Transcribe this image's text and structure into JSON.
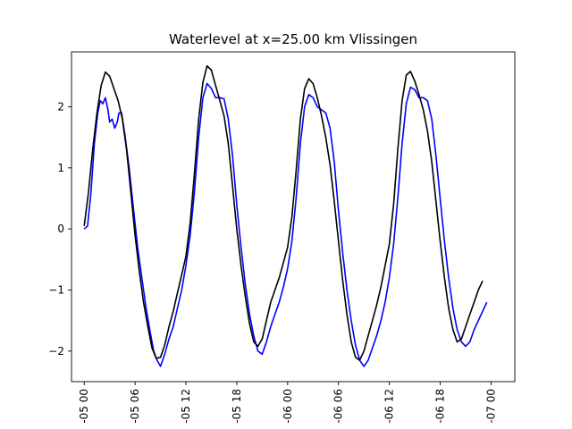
{
  "chart_data": {
    "type": "line",
    "title": "Waterlevel at x=25.00 km Vlissingen",
    "xlabel": "",
    "ylabel": "",
    "xlim": [
      -1.5,
      50.8
    ],
    "ylim": [
      -2.5,
      2.9
    ],
    "grid": false,
    "legend": "none",
    "x_tick_hours": [
      0,
      6,
      12,
      18,
      24,
      30,
      36,
      42,
      48
    ],
    "x_tick_labels": [
      "-05 00",
      "-05 06",
      "-05 12",
      "-05 18",
      "-06 00",
      "-06 06",
      "-06 12",
      "-06 18",
      "-07 00"
    ],
    "y_ticks": [
      -2,
      -1,
      0,
      1,
      2
    ],
    "y_tick_labels": [
      "−2",
      "−1",
      "0",
      "1",
      "2"
    ],
    "series": [
      {
        "color": "#0000ff",
        "points": [
          [
            0.0,
            0.0
          ],
          [
            0.4,
            0.05
          ],
          [
            0.8,
            0.6
          ],
          [
            1.2,
            1.4
          ],
          [
            1.6,
            1.9
          ],
          [
            1.9,
            2.1
          ],
          [
            2.2,
            2.05
          ],
          [
            2.5,
            2.15
          ],
          [
            2.8,
            1.95
          ],
          [
            3.0,
            1.75
          ],
          [
            3.3,
            1.8
          ],
          [
            3.6,
            1.65
          ],
          [
            3.9,
            1.75
          ],
          [
            4.1,
            1.9
          ],
          [
            4.4,
            1.9
          ],
          [
            4.8,
            1.55
          ],
          [
            5.3,
            1.0
          ],
          [
            5.8,
            0.35
          ],
          [
            6.3,
            -0.3
          ],
          [
            6.8,
            -0.8
          ],
          [
            7.3,
            -1.3
          ],
          [
            7.8,
            -1.7
          ],
          [
            8.2,
            -2.0
          ],
          [
            8.6,
            -2.15
          ],
          [
            9.0,
            -2.25
          ],
          [
            9.5,
            -2.05
          ],
          [
            10.0,
            -1.8
          ],
          [
            10.5,
            -1.6
          ],
          [
            11.0,
            -1.3
          ],
          [
            11.5,
            -1.0
          ],
          [
            12.0,
            -0.6
          ],
          [
            12.5,
            -0.1
          ],
          [
            13.0,
            0.6
          ],
          [
            13.5,
            1.5
          ],
          [
            14.0,
            2.15
          ],
          [
            14.5,
            2.38
          ],
          [
            15.0,
            2.3
          ],
          [
            15.5,
            2.15
          ],
          [
            16.0,
            2.15
          ],
          [
            16.5,
            2.13
          ],
          [
            17.0,
            1.8
          ],
          [
            17.5,
            1.2
          ],
          [
            18.0,
            0.4
          ],
          [
            18.5,
            -0.3
          ],
          [
            19.0,
            -0.9
          ],
          [
            19.5,
            -1.4
          ],
          [
            20.0,
            -1.75
          ],
          [
            20.5,
            -2.0
          ],
          [
            21.0,
            -2.05
          ],
          [
            21.5,
            -1.85
          ],
          [
            22.0,
            -1.6
          ],
          [
            22.5,
            -1.4
          ],
          [
            23.0,
            -1.2
          ],
          [
            23.5,
            -0.95
          ],
          [
            24.0,
            -0.65
          ],
          [
            24.5,
            -0.2
          ],
          [
            25.0,
            0.5
          ],
          [
            25.5,
            1.4
          ],
          [
            26.0,
            2.0
          ],
          [
            26.5,
            2.2
          ],
          [
            27.0,
            2.15
          ],
          [
            27.5,
            2.0
          ],
          [
            28.0,
            1.95
          ],
          [
            28.5,
            1.9
          ],
          [
            29.0,
            1.65
          ],
          [
            29.5,
            1.1
          ],
          [
            30.0,
            0.3
          ],
          [
            30.5,
            -0.4
          ],
          [
            31.0,
            -1.0
          ],
          [
            31.5,
            -1.5
          ],
          [
            32.0,
            -1.9
          ],
          [
            32.5,
            -2.15
          ],
          [
            33.0,
            -2.25
          ],
          [
            33.5,
            -2.15
          ],
          [
            34.0,
            -1.95
          ],
          [
            34.5,
            -1.75
          ],
          [
            35.0,
            -1.5
          ],
          [
            35.5,
            -1.2
          ],
          [
            36.0,
            -0.8
          ],
          [
            36.5,
            -0.25
          ],
          [
            37.0,
            0.5
          ],
          [
            37.5,
            1.4
          ],
          [
            38.0,
            2.05
          ],
          [
            38.5,
            2.32
          ],
          [
            39.0,
            2.28
          ],
          [
            39.5,
            2.15
          ],
          [
            40.0,
            2.15
          ],
          [
            40.5,
            2.1
          ],
          [
            41.0,
            1.8
          ],
          [
            41.5,
            1.2
          ],
          [
            42.0,
            0.5
          ],
          [
            42.5,
            -0.2
          ],
          [
            43.0,
            -0.8
          ],
          [
            43.5,
            -1.3
          ],
          [
            44.0,
            -1.65
          ],
          [
            44.5,
            -1.85
          ],
          [
            45.0,
            -1.92
          ],
          [
            45.5,
            -1.85
          ],
          [
            46.0,
            -1.65
          ],
          [
            46.5,
            -1.5
          ],
          [
            47.0,
            -1.35
          ],
          [
            47.5,
            -1.2
          ]
        ]
      },
      {
        "color": "#000000",
        "points": [
          [
            0.0,
            0.05
          ],
          [
            0.5,
            0.6
          ],
          [
            1.0,
            1.3
          ],
          [
            1.5,
            1.9
          ],
          [
            2.0,
            2.35
          ],
          [
            2.5,
            2.57
          ],
          [
            3.0,
            2.5
          ],
          [
            3.5,
            2.3
          ],
          [
            4.0,
            2.1
          ],
          [
            4.5,
            1.8
          ],
          [
            5.0,
            1.3
          ],
          [
            5.5,
            0.6
          ],
          [
            6.0,
            -0.1
          ],
          [
            6.5,
            -0.7
          ],
          [
            7.0,
            -1.2
          ],
          [
            7.5,
            -1.6
          ],
          [
            8.0,
            -1.95
          ],
          [
            8.5,
            -2.12
          ],
          [
            9.0,
            -2.1
          ],
          [
            9.5,
            -1.9
          ],
          [
            10.0,
            -1.6
          ],
          [
            10.5,
            -1.35
          ],
          [
            11.0,
            -1.05
          ],
          [
            11.5,
            -0.75
          ],
          [
            12.0,
            -0.45
          ],
          [
            12.5,
            0.1
          ],
          [
            13.0,
            0.9
          ],
          [
            13.5,
            1.8
          ],
          [
            14.0,
            2.4
          ],
          [
            14.5,
            2.67
          ],
          [
            15.0,
            2.6
          ],
          [
            15.5,
            2.35
          ],
          [
            16.0,
            2.1
          ],
          [
            16.5,
            1.85
          ],
          [
            17.0,
            1.4
          ],
          [
            17.5,
            0.7
          ],
          [
            18.0,
            0.0
          ],
          [
            18.5,
            -0.6
          ],
          [
            19.0,
            -1.1
          ],
          [
            19.5,
            -1.55
          ],
          [
            20.0,
            -1.85
          ],
          [
            20.5,
            -1.92
          ],
          [
            21.0,
            -1.8
          ],
          [
            21.5,
            -1.5
          ],
          [
            22.0,
            -1.2
          ],
          [
            22.5,
            -1.0
          ],
          [
            23.0,
            -0.8
          ],
          [
            23.5,
            -0.55
          ],
          [
            24.0,
            -0.3
          ],
          [
            24.5,
            0.2
          ],
          [
            25.0,
            0.95
          ],
          [
            25.5,
            1.8
          ],
          [
            26.0,
            2.3
          ],
          [
            26.5,
            2.46
          ],
          [
            27.0,
            2.38
          ],
          [
            27.5,
            2.15
          ],
          [
            28.0,
            1.85
          ],
          [
            28.5,
            1.5
          ],
          [
            29.0,
            1.05
          ],
          [
            29.5,
            0.45
          ],
          [
            30.0,
            -0.2
          ],
          [
            30.5,
            -0.85
          ],
          [
            31.0,
            -1.4
          ],
          [
            31.5,
            -1.85
          ],
          [
            32.0,
            -2.1
          ],
          [
            32.5,
            -2.15
          ],
          [
            33.0,
            -2.0
          ],
          [
            33.5,
            -1.75
          ],
          [
            34.0,
            -1.5
          ],
          [
            34.5,
            -1.25
          ],
          [
            35.0,
            -0.95
          ],
          [
            35.5,
            -0.6
          ],
          [
            36.0,
            -0.25
          ],
          [
            36.5,
            0.4
          ],
          [
            37.0,
            1.3
          ],
          [
            37.5,
            2.1
          ],
          [
            38.0,
            2.52
          ],
          [
            38.5,
            2.58
          ],
          [
            39.0,
            2.42
          ],
          [
            39.5,
            2.2
          ],
          [
            40.0,
            1.95
          ],
          [
            40.5,
            1.6
          ],
          [
            41.0,
            1.1
          ],
          [
            41.5,
            0.45
          ],
          [
            42.0,
            -0.2
          ],
          [
            42.5,
            -0.8
          ],
          [
            43.0,
            -1.3
          ],
          [
            43.5,
            -1.65
          ],
          [
            44.0,
            -1.85
          ],
          [
            44.5,
            -1.8
          ],
          [
            45.0,
            -1.6
          ],
          [
            45.5,
            -1.4
          ],
          [
            46.0,
            -1.2
          ],
          [
            46.5,
            -1.0
          ],
          [
            47.0,
            -0.85
          ]
        ]
      }
    ]
  }
}
